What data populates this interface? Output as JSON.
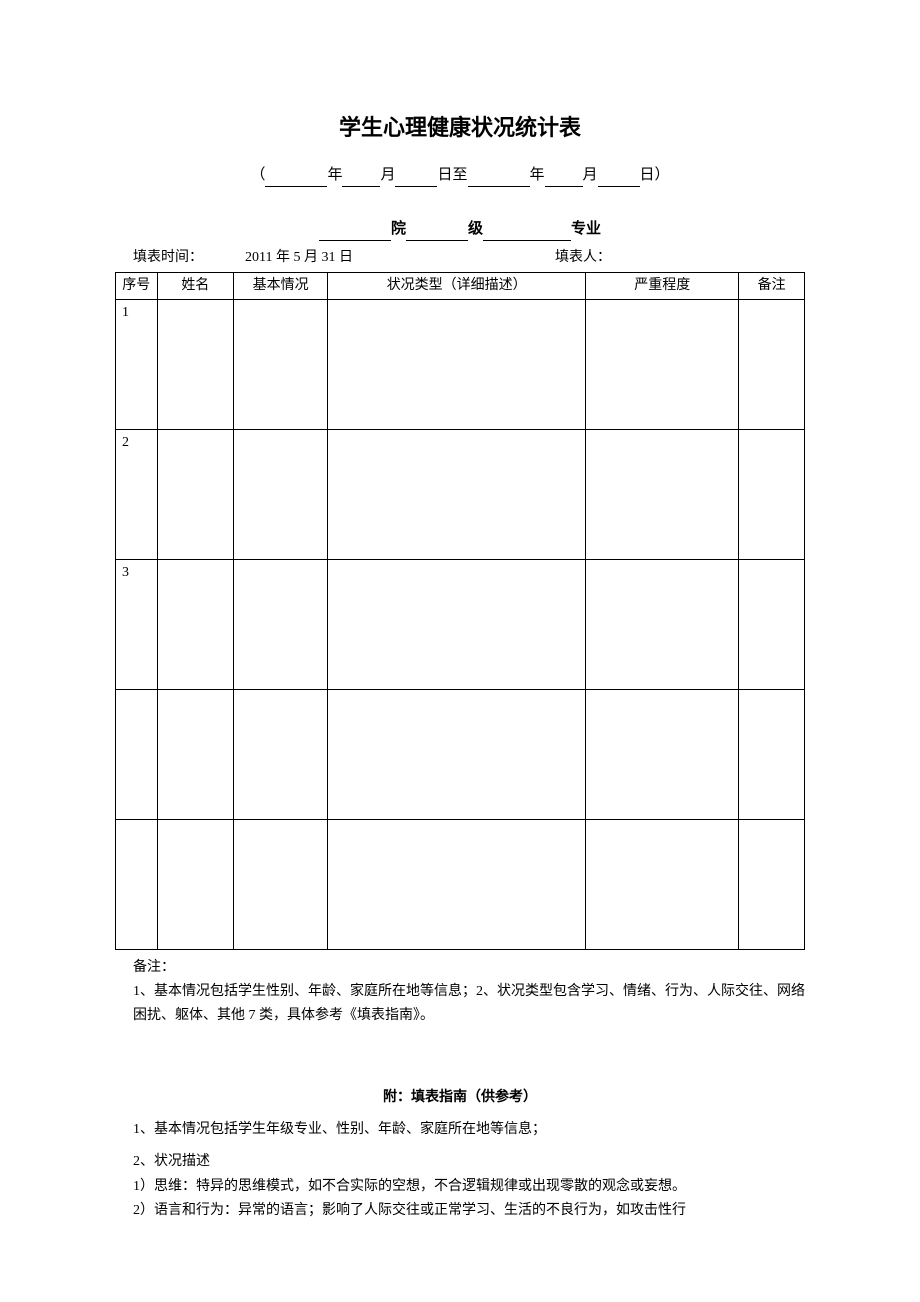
{
  "title": "学生心理健康状况统计表",
  "dateRange": {
    "open": "（",
    "yearLabel": "年",
    "monthLabel": "月",
    "dayLabel1": "日至",
    "dayLabel2": "日）"
  },
  "orgLine": {
    "label1": "院",
    "label2": "级",
    "label3": "专业"
  },
  "meta": {
    "fillTimeLabel": "填表时间：",
    "fillDate": "2011 年 5 月 31 日",
    "fillerLabel": "填表人："
  },
  "table": {
    "headers": {
      "seq": "序号",
      "name": "姓名",
      "basic": "基本情况",
      "type": "状况类型（详细描述）",
      "severity": "严重程度",
      "remarks": "备注"
    },
    "rows": [
      {
        "seq": "1",
        "name": "",
        "basic": "",
        "type": "",
        "severity": "",
        "remarks": ""
      },
      {
        "seq": "2",
        "name": "",
        "basic": "",
        "type": "",
        "severity": "",
        "remarks": ""
      },
      {
        "seq": "3",
        "name": "",
        "basic": "",
        "type": "",
        "severity": "",
        "remarks": ""
      },
      {
        "seq": "",
        "name": "",
        "basic": "",
        "type": "",
        "severity": "",
        "remarks": ""
      },
      {
        "seq": "",
        "name": "",
        "basic": "",
        "type": "",
        "severity": "",
        "remarks": ""
      }
    ]
  },
  "notes": {
    "label": "备注：",
    "line1": "1、基本情况包括学生性别、年龄、家庭所在地等信息；2、状况类型包含学习、情绪、行为、人际交往、网络困扰、躯体、其他 7 类，具体参考《填表指南》。"
  },
  "appendix": {
    "title": "附：填表指南（供参考）",
    "p1": "1、基本情况包括学生年级专业、性别、年龄、家庭所在地等信息；",
    "p2": "2、状况描述",
    "p3": "1）思维：特异的思维模式，如不合实际的空想，不合逻辑规律或出现零散的观念或妄想。",
    "p4": "2）语言和行为：异常的语言；影响了人际交往或正常学习、生活的不良行为，如攻击性行"
  }
}
